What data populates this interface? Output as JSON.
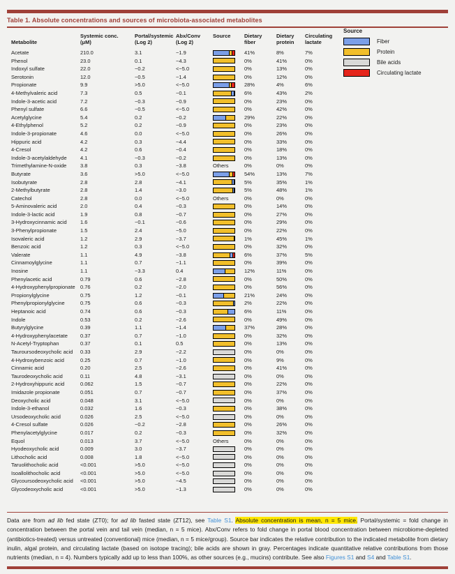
{
  "colors": {
    "fiber": "#7b9fe8",
    "protein": "#f2bf2b",
    "bile": "#d9d9d7",
    "lactate": "#e5251b",
    "accent": "#9f4038",
    "link": "#3f8fd6",
    "highlight": "#ffe700"
  },
  "table": {
    "title": "Table 1.  Absolute concentrations and sources of microbiota-associated metabolites",
    "others_label": "Others",
    "columns": {
      "metabolite": "Metabolite",
      "conc1": "Systemic conc.",
      "conc2": "(μM)",
      "portal1": "Portal/systemic",
      "portal2": "(Log 2)",
      "abx1": "Abx/Conv",
      "abx2": "(Log 2)",
      "source": "Source",
      "fiber1": "Dietary",
      "fiber2": "fiber",
      "protein1": "Dietary",
      "protein2": "protein",
      "lactate1": "Circulating",
      "lactate2": "lactate"
    },
    "rows": [
      {
        "name": "Acetate",
        "conc": "210.0",
        "portal": "3.1",
        "abx": "−1.9",
        "bar": [
          [
            "fiber",
            73
          ],
          [
            "protein",
            14
          ],
          [
            "lactate",
            13
          ]
        ],
        "fiber": "41%",
        "protein": "8%",
        "lactate": "7%"
      },
      {
        "name": "Phenol",
        "conc": "23.0",
        "portal": "0.1",
        "abx": "−4.3",
        "bar": [
          [
            "protein",
            100
          ]
        ],
        "fiber": "0%",
        "protein": "41%",
        "lactate": "0%"
      },
      {
        "name": "Indoxyl sulfate",
        "conc": "22.0",
        "portal": "−0.2",
        "abx": "<−5.0",
        "bar": [
          [
            "protein",
            100
          ]
        ],
        "fiber": "0%",
        "protein": "13%",
        "lactate": "0%"
      },
      {
        "name": "Serotonin",
        "conc": "12.0",
        "portal": "−0.5",
        "abx": "−1.4",
        "bar": [
          [
            "protein",
            100
          ]
        ],
        "fiber": "0%",
        "protein": "12%",
        "lactate": "0%"
      },
      {
        "name": "Propionate",
        "conc": "9.9",
        "portal": ">5.0",
        "abx": "<−5.0",
        "bar": [
          [
            "fiber",
            72
          ],
          [
            "protein",
            12
          ],
          [
            "lactate",
            16
          ]
        ],
        "fiber": "28%",
        "protein": "4%",
        "lactate": "6%"
      },
      {
        "name": "4-Methylvaleric acid",
        "conc": "7.3",
        "portal": "0.5",
        "abx": "−0.1",
        "bar": [
          [
            "protein",
            84
          ],
          [
            "fiber",
            12
          ],
          [
            "lactate",
            4
          ]
        ],
        "fiber": "6%",
        "protein": "43%",
        "lactate": "2%"
      },
      {
        "name": "Indole-3-acetic acid",
        "conc": "7.2",
        "portal": "−0.3",
        "abx": "−0.9",
        "bar": [
          [
            "protein",
            100
          ]
        ],
        "fiber": "0%",
        "protein": "23%",
        "lactate": "0%"
      },
      {
        "name": "Phenyl sulfate",
        "conc": "6.6",
        "portal": "−0.5",
        "abx": "<−5.0",
        "bar": [
          [
            "protein",
            100
          ]
        ],
        "fiber": "0%",
        "protein": "42%",
        "lactate": "0%"
      },
      {
        "name": "Acetylglycine",
        "conc": "5.4",
        "portal": "0.2",
        "abx": "−0.2",
        "bar": [
          [
            "fiber",
            57
          ],
          [
            "protein",
            43
          ]
        ],
        "fiber": "29%",
        "protein": "22%",
        "lactate": "0%"
      },
      {
        "name": "4-Ethylphenol",
        "conc": "5.2",
        "portal": "0.2",
        "abx": "−0.9",
        "bar": [
          [
            "protein",
            100
          ]
        ],
        "fiber": "0%",
        "protein": "23%",
        "lactate": "0%"
      },
      {
        "name": "Indole-3-propionate",
        "conc": "4.6",
        "portal": "0.0",
        "abx": "<−5.0",
        "bar": [
          [
            "protein",
            100
          ]
        ],
        "fiber": "0%",
        "protein": "26%",
        "lactate": "0%"
      },
      {
        "name": "Hippuric acid",
        "conc": "4.2",
        "portal": "0.3",
        "abx": "−4.4",
        "bar": [
          [
            "protein",
            100
          ]
        ],
        "fiber": "0%",
        "protein": "33%",
        "lactate": "0%"
      },
      {
        "name": "4-Cresol",
        "conc": "4.2",
        "portal": "0.6",
        "abx": "−0.4",
        "bar": [
          [
            "protein",
            100
          ]
        ],
        "fiber": "0%",
        "protein": "18%",
        "lactate": "0%"
      },
      {
        "name": "Indole-3-acetylaldehyde",
        "conc": "4.1",
        "portal": "−0.3",
        "abx": "−0.2",
        "bar": [
          [
            "protein",
            100
          ]
        ],
        "fiber": "0%",
        "protein": "13%",
        "lactate": "0%"
      },
      {
        "name": "Trimethylamine-N-oxide",
        "conc": "3.8",
        "portal": "0.3",
        "abx": "−3.8",
        "bar": "others",
        "fiber": "0%",
        "protein": "0%",
        "lactate": "0%"
      },
      {
        "name": "Butyrate",
        "conc": "3.6",
        "portal": ">5.0",
        "abx": "<−5.0",
        "bar": [
          [
            "fiber",
            73
          ],
          [
            "protein",
            18
          ],
          [
            "lactate",
            9
          ]
        ],
        "fiber": "54%",
        "protein": "13%",
        "lactate": "7%"
      },
      {
        "name": "Isobutyrate",
        "conc": "2.8",
        "portal": "2.8",
        "abx": "−4.1",
        "bar": [
          [
            "protein",
            85
          ],
          [
            "fiber",
            12
          ],
          [
            "lactate",
            3
          ]
        ],
        "fiber": "5%",
        "protein": "35%",
        "lactate": "1%"
      },
      {
        "name": "2-Methylbutyrate",
        "conc": "2.8",
        "portal": "1.4",
        "abx": "−3.0",
        "bar": [
          [
            "protein",
            89
          ],
          [
            "fiber",
            9
          ],
          [
            "lactate",
            2
          ]
        ],
        "fiber": "5%",
        "protein": "48%",
        "lactate": "1%"
      },
      {
        "name": "Catechol",
        "conc": "2.8",
        "portal": "0.0",
        "abx": "<−5.0",
        "bar": "others",
        "fiber": "0%",
        "protein": "0%",
        "lactate": "0%"
      },
      {
        "name": "5-Aminovaleric acid",
        "conc": "2.0",
        "portal": "0.4",
        "abx": "−0.3",
        "bar": [
          [
            "protein",
            100
          ]
        ],
        "fiber": "0%",
        "protein": "14%",
        "lactate": "0%"
      },
      {
        "name": "Indole-3-lactic acid",
        "conc": "1.9",
        "portal": "0.8",
        "abx": "−0.7",
        "bar": [
          [
            "protein",
            100
          ]
        ],
        "fiber": "0%",
        "protein": "27%",
        "lactate": "0%"
      },
      {
        "name": "3-Hydroxycinnamic acid",
        "conc": "1.6",
        "portal": "−0.1",
        "abx": "−0.6",
        "bar": [
          [
            "protein",
            100
          ]
        ],
        "fiber": "0%",
        "protein": "29%",
        "lactate": "0%"
      },
      {
        "name": "3-Phenylpropionate",
        "conc": "1.5",
        "portal": "2.4",
        "abx": "−5.0",
        "bar": [
          [
            "protein",
            100
          ]
        ],
        "fiber": "0%",
        "protein": "22%",
        "lactate": "0%"
      },
      {
        "name": "Isovaleric acid",
        "conc": "1.2",
        "portal": "2.9",
        "abx": "−3.7",
        "bar": [
          [
            "protein",
            96
          ],
          [
            "fiber",
            2
          ],
          [
            "lactate",
            2
          ]
        ],
        "fiber": "1%",
        "protein": "45%",
        "lactate": "1%"
      },
      {
        "name": "Benzoic acid",
        "conc": "1.2",
        "portal": "0.3",
        "abx": "<−5.0",
        "bar": [
          [
            "protein",
            100
          ]
        ],
        "fiber": "0%",
        "protein": "32%",
        "lactate": "0%"
      },
      {
        "name": "Valerate",
        "conc": "1.1",
        "portal": "4.9",
        "abx": "−3.8",
        "bar": [
          [
            "protein",
            77
          ],
          [
            "fiber",
            13
          ],
          [
            "lactate",
            10
          ]
        ],
        "fiber": "6%",
        "protein": "37%",
        "lactate": "5%"
      },
      {
        "name": "Cinnamoylglycine",
        "conc": "1.1",
        "portal": "0.7",
        "abx": "−1.1",
        "bar": [
          [
            "protein",
            100
          ]
        ],
        "fiber": "0%",
        "protein": "39%",
        "lactate": "0%"
      },
      {
        "name": "Inosine",
        "conc": "1.1",
        "portal": "−3.3",
        "abx": "0.4",
        "bar": [
          [
            "fiber",
            52
          ],
          [
            "protein",
            48
          ]
        ],
        "fiber": "12%",
        "protein": "11%",
        "lactate": "0%"
      },
      {
        "name": "Phenylacetic acid",
        "conc": "0.79",
        "portal": "0.6",
        "abx": "−2.8",
        "bar": [
          [
            "protein",
            100
          ]
        ],
        "fiber": "0%",
        "protein": "50%",
        "lactate": "0%"
      },
      {
        "name": "4-Hydroxyphenylpropionate",
        "conc": "0.76",
        "portal": "0.2",
        "abx": "−2.0",
        "bar": [
          [
            "protein",
            100
          ]
        ],
        "fiber": "0%",
        "protein": "56%",
        "lactate": "0%"
      },
      {
        "name": "Propionylglycine",
        "conc": "0.75",
        "portal": "1.2",
        "abx": "−0.1",
        "bar": [
          [
            "fiber",
            47
          ],
          [
            "protein",
            53
          ]
        ],
        "fiber": "21%",
        "protein": "24%",
        "lactate": "0%"
      },
      {
        "name": "Phenylpropionylglycine",
        "conc": "0.75",
        "portal": "0.6",
        "abx": "−0.3",
        "bar": [
          [
            "protein",
            92
          ],
          [
            "fiber",
            8
          ]
        ],
        "fiber": "2%",
        "protein": "22%",
        "lactate": "0%"
      },
      {
        "name": "Heptanoic acid",
        "conc": "0.74",
        "portal": "0.6",
        "abx": "−0.3",
        "bar": [
          [
            "protein",
            65
          ],
          [
            "fiber",
            35
          ]
        ],
        "fiber": "6%",
        "protein": "11%",
        "lactate": "0%"
      },
      {
        "name": "Indole",
        "conc": "0.53",
        "portal": "0.2",
        "abx": "−2.6",
        "bar": [
          [
            "protein",
            100
          ]
        ],
        "fiber": "0%",
        "protein": "49%",
        "lactate": "0%"
      },
      {
        "name": "Butyrylglycine",
        "conc": "0.39",
        "portal": "1.1",
        "abx": "−1.4",
        "bar": [
          [
            "fiber",
            57
          ],
          [
            "protein",
            43
          ]
        ],
        "fiber": "37%",
        "protein": "28%",
        "lactate": "0%"
      },
      {
        "name": "4-Hydroxyphenylacetate",
        "conc": "0.37",
        "portal": "0.7",
        "abx": "−1.0",
        "bar": [
          [
            "protein",
            100
          ]
        ],
        "fiber": "0%",
        "protein": "32%",
        "lactate": "0%"
      },
      {
        "name": "N-Acetyl-Tryptophan",
        "conc": "0.37",
        "portal": "0.1",
        "abx": "0.5",
        "bar": [
          [
            "protein",
            100
          ]
        ],
        "fiber": "0%",
        "protein": "13%",
        "lactate": "0%"
      },
      {
        "name": "Tauroursodeoxycholic acid",
        "conc": "0.33",
        "portal": "2.9",
        "abx": "−2.2",
        "bar": [
          [
            "bile",
            100
          ]
        ],
        "fiber": "0%",
        "protein": "0%",
        "lactate": "0%"
      },
      {
        "name": "4-Hydroxybenzoic acid",
        "conc": "0.25",
        "portal": "0.7",
        "abx": "−1.0",
        "bar": [
          [
            "protein",
            100
          ]
        ],
        "fiber": "0%",
        "protein": "9%",
        "lactate": "0%"
      },
      {
        "name": "Cinnamic acid",
        "conc": "0.20",
        "portal": "2.5",
        "abx": "−2.6",
        "bar": [
          [
            "protein",
            100
          ]
        ],
        "fiber": "0%",
        "protein": "41%",
        "lactate": "0%"
      },
      {
        "name": "Taurodeoxycholic acid",
        "conc": "0.11",
        "portal": "4.8",
        "abx": "−3.1",
        "bar": [
          [
            "bile",
            100
          ]
        ],
        "fiber": "0%",
        "protein": "0%",
        "lactate": "0%"
      },
      {
        "name": "2-Hydroxyhippuric acid",
        "conc": "0.062",
        "portal": "1.5",
        "abx": "−0.7",
        "bar": [
          [
            "protein",
            100
          ]
        ],
        "fiber": "0%",
        "protein": "22%",
        "lactate": "0%"
      },
      {
        "name": "Imidazole propionate",
        "conc": "0.051",
        "portal": "0.7",
        "abx": "−0.7",
        "bar": [
          [
            "protein",
            100
          ]
        ],
        "fiber": "0%",
        "protein": "37%",
        "lactate": "0%"
      },
      {
        "name": "Deoxycholic acid",
        "conc": "0.048",
        "portal": "3.1",
        "abx": "<−5.0",
        "bar": [
          [
            "bile",
            100
          ]
        ],
        "fiber": "0%",
        "protein": "0%",
        "lactate": "0%"
      },
      {
        "name": "Indole-3-ethanol",
        "conc": "0.032",
        "portal": "1.6",
        "abx": "−0.3",
        "bar": [
          [
            "protein",
            100
          ]
        ],
        "fiber": "0%",
        "protein": "38%",
        "lactate": "0%"
      },
      {
        "name": "Ursodeoxycholic acid",
        "conc": "0.026",
        "portal": "2.5",
        "abx": "<−5.0",
        "bar": [
          [
            "bile",
            100
          ]
        ],
        "fiber": "0%",
        "protein": "0%",
        "lactate": "0%"
      },
      {
        "name": "4-Cresol sulfate",
        "conc": "0.026",
        "portal": "−0.2",
        "abx": "−2.8",
        "bar": [
          [
            "protein",
            100
          ]
        ],
        "fiber": "0%",
        "protein": "26%",
        "lactate": "0%"
      },
      {
        "name": "Phenylacetylglycine",
        "conc": "0.017",
        "portal": "0.2",
        "abx": "−0.3",
        "bar": [
          [
            "protein",
            100
          ]
        ],
        "fiber": "0%",
        "protein": "32%",
        "lactate": "0%"
      },
      {
        "name": "Equol",
        "conc": "0.013",
        "portal": "3.7",
        "abx": "<−5.0",
        "bar": "others",
        "fiber": "0%",
        "protein": "0%",
        "lactate": "0%"
      },
      {
        "name": "Hyodeoxycholic acid",
        "conc": "0.009",
        "portal": "3.0",
        "abx": "−3.7",
        "bar": [
          [
            "bile",
            100
          ]
        ],
        "fiber": "0%",
        "protein": "0%",
        "lactate": "0%"
      },
      {
        "name": "Lithocholic acid",
        "conc": "0.008",
        "portal": "1.8",
        "abx": "<−5.0",
        "bar": [
          [
            "bile",
            100
          ]
        ],
        "fiber": "0%",
        "protein": "0%",
        "lactate": "0%"
      },
      {
        "name": "Taruolithocholic acid",
        "conc": "<0.001",
        "portal": ">5.0",
        "abx": "<−5.0",
        "bar": [
          [
            "bile",
            100
          ]
        ],
        "fiber": "0%",
        "protein": "0%",
        "lactate": "0%"
      },
      {
        "name": "Isoallolithocholic acid",
        "conc": "<0.001",
        "portal": ">5.0",
        "abx": "<−5.0",
        "bar": [
          [
            "bile",
            100
          ]
        ],
        "fiber": "0%",
        "protein": "0%",
        "lactate": "0%"
      },
      {
        "name": "Glycoursodeoxycholic acid",
        "conc": "<0.001",
        "portal": ">5.0",
        "abx": "−4.5",
        "bar": [
          [
            "bile",
            100
          ]
        ],
        "fiber": "0%",
        "protein": "0%",
        "lactate": "0%"
      },
      {
        "name": "Glycodeoxycholic acid",
        "conc": "<0.001",
        "portal": ">5.0",
        "abx": "−1.3",
        "bar": [
          [
            "bile",
            100
          ]
        ],
        "fiber": "0%",
        "protein": "0%",
        "lactate": "0%"
      }
    ]
  },
  "legend": {
    "title": "Source",
    "items": [
      {
        "key": "fiber",
        "label": "Fiber"
      },
      {
        "key": "protein",
        "label": "Protein"
      },
      {
        "key": "bile",
        "label": "Bile acids"
      },
      {
        "key": "lactate",
        "label": "Circulating lactate"
      }
    ]
  },
  "footnote": {
    "segments": [
      {
        "t": "Data are from "
      },
      {
        "t": "ad lib",
        "style": "italic"
      },
      {
        "t": " fed state (ZT0); for "
      },
      {
        "t": "ad lib",
        "style": "italic"
      },
      {
        "t": " fasted state (ZT12), see "
      },
      {
        "t": "Table S1",
        "style": "link",
        "name": "link-table-s1"
      },
      {
        "t": ". "
      },
      {
        "t": "Absolute concentration is mean, n = 5 mice.",
        "style": "highlight"
      },
      {
        "t": " Portal/systemic = fold change in concentration between the portal vein and tail vein (median, n = 5 mice). Abx/Conv refers to fold change in portal blood concentration between microbiome-depleted (antibiotics-treated) versus untreated (conventional) mice (median, n = 5 mice/group). Source bar indicates the relative contribution to the indicated metabolite from dietary inulin, algal protein, and circulating lactate (based on isotope tracing); bile acids are shown in gray. Percentages indicate quantitative relative contributions from those nutrients (median, n = 4). Numbers typically add up to less than 100%, as other sources (e.g., mucins) contribute. See also "
      },
      {
        "t": "Figures S1",
        "style": "link",
        "name": "link-figures-s1"
      },
      {
        "t": " and "
      },
      {
        "t": "S4",
        "style": "link",
        "name": "link-figure-s4"
      },
      {
        "t": " and "
      },
      {
        "t": "Table S1",
        "style": "link",
        "name": "link-table-s1-2"
      },
      {
        "t": "."
      }
    ]
  }
}
